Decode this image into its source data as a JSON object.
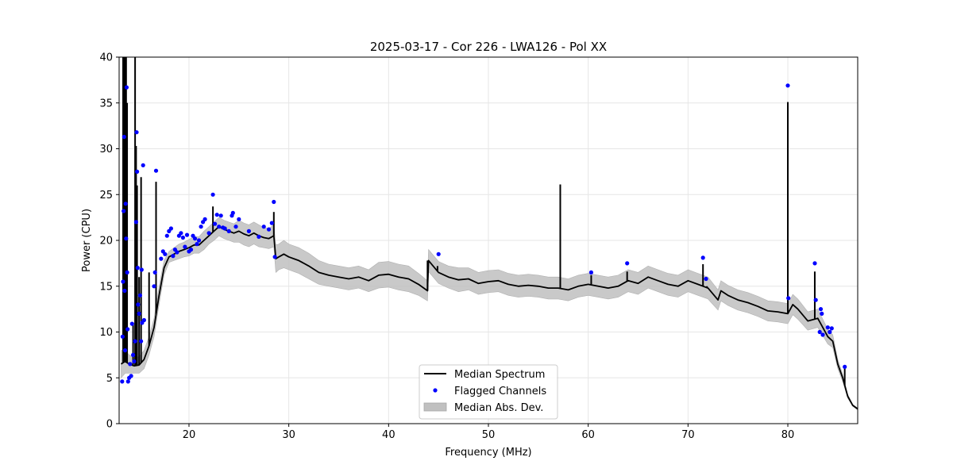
{
  "chart_data": {
    "type": "line",
    "title": "2025-03-17 - Cor 226 - LWA126 - Pol XX",
    "xlabel": "Frequency (MHz)",
    "ylabel": "Power (CPU)",
    "xlim": [
      13,
      87
    ],
    "ylim": [
      0,
      40
    ],
    "xticks": [
      20,
      30,
      40,
      50,
      60,
      70,
      80
    ],
    "yticks": [
      0,
      5,
      10,
      15,
      20,
      25,
      30,
      35,
      40
    ],
    "grid": true,
    "legend_position": "lower-center",
    "legend": [
      "Median Spectrum",
      "Flagged Channels",
      "Median Abs. Dev."
    ],
    "colors": {
      "median": "#000000",
      "flagged": "#0000ff",
      "mad": "#c0c0c0"
    },
    "series": [
      {
        "name": "Median Spectrum",
        "x": [
          13.2,
          13.6,
          14.0,
          14.5,
          15.0,
          15.5,
          16.0,
          16.5,
          17.0,
          17.5,
          18.0,
          18.5,
          19.0,
          19.5,
          20.0,
          20.5,
          21.0,
          21.5,
          22.0,
          22.5,
          23.0,
          23.5,
          24.0,
          24.5,
          25.0,
          25.5,
          26.0,
          26.5,
          27.0,
          27.5,
          28.0,
          28.5,
          28.7,
          29.0,
          29.5,
          30.0,
          30.5,
          31.0,
          32.0,
          33.0,
          34.0,
          35.0,
          36.0,
          37.0,
          38.0,
          39.0,
          40.0,
          41.0,
          42.0,
          43.0,
          43.9,
          44.0,
          45.0,
          46.0,
          47.0,
          48.0,
          49.0,
          50.0,
          51.0,
          52.0,
          53.0,
          54.0,
          55.0,
          56.0,
          57.0,
          58.0,
          59.0,
          60.0,
          61.0,
          62.0,
          63.0,
          64.0,
          65.0,
          66.0,
          67.0,
          68.0,
          69.0,
          70.0,
          71.0,
          72.0,
          73.0,
          73.3,
          74.0,
          75.0,
          76.0,
          77.0,
          78.0,
          79.0,
          80.0,
          80.5,
          81.0,
          82.0,
          83.0,
          83.5,
          84.0,
          84.5,
          85.0,
          85.5,
          86.0,
          86.5,
          87.0
        ],
        "y": [
          6.5,
          6.8,
          6.5,
          6.3,
          6.4,
          7.0,
          8.5,
          10.5,
          14.0,
          17.0,
          18.2,
          18.5,
          18.8,
          19.0,
          19.2,
          19.5,
          19.5,
          20.0,
          20.5,
          21.0,
          21.5,
          21.2,
          21.0,
          20.8,
          21.0,
          20.7,
          20.5,
          20.8,
          20.5,
          20.3,
          20.2,
          20.5,
          18.0,
          18.2,
          18.5,
          18.2,
          18.0,
          17.8,
          17.2,
          16.5,
          16.2,
          16.0,
          15.8,
          16.0,
          15.6,
          16.2,
          16.3,
          16.0,
          15.8,
          15.2,
          14.5,
          17.8,
          16.5,
          16.0,
          15.7,
          15.8,
          15.3,
          15.5,
          15.6,
          15.2,
          15.0,
          15.1,
          15.0,
          14.8,
          14.8,
          14.6,
          15.0,
          15.2,
          15.0,
          14.8,
          15.0,
          15.6,
          15.3,
          16.0,
          15.6,
          15.2,
          15.0,
          15.6,
          15.2,
          14.8,
          13.5,
          14.5,
          14.0,
          13.5,
          13.2,
          12.8,
          12.3,
          12.2,
          12.0,
          13.0,
          12.5,
          11.2,
          11.5,
          10.5,
          9.5,
          9.0,
          6.5,
          5.0,
          3.0,
          2.0,
          1.6
        ]
      },
      {
        "name": "Median Abs. Dev.",
        "x": [
          13.2,
          13.6,
          14.0,
          14.5,
          15.0,
          15.5,
          16.0,
          16.5,
          17.0,
          17.5,
          18.0,
          18.5,
          19.0,
          19.5,
          20.0,
          20.5,
          21.0,
          21.5,
          22.0,
          22.5,
          23.0,
          23.5,
          24.0,
          24.5,
          25.0,
          25.5,
          26.0,
          26.5,
          27.0,
          27.5,
          28.0,
          28.5,
          28.7,
          29.0,
          29.5,
          30.0,
          30.5,
          31.0,
          32.0,
          33.0,
          34.0,
          35.0,
          36.0,
          37.0,
          38.0,
          39.0,
          40.0,
          41.0,
          42.0,
          43.0,
          43.9,
          44.0,
          45.0,
          46.0,
          47.0,
          48.0,
          49.0,
          50.0,
          51.0,
          52.0,
          53.0,
          54.0,
          55.0,
          56.0,
          57.0,
          58.0,
          59.0,
          60.0,
          61.0,
          62.0,
          63.0,
          64.0,
          65.0,
          66.0,
          67.0,
          68.0,
          69.0,
          70.0,
          71.0,
          72.0,
          73.0,
          73.3,
          74.0,
          75.0,
          76.0,
          77.0,
          78.0,
          79.0,
          80.0,
          80.5,
          81.0,
          82.0,
          83.0,
          83.5,
          84.0,
          84.5,
          85.0,
          85.5,
          86.0,
          86.5,
          87.0
        ],
        "low": [
          5.0,
          5.5,
          5.5,
          5.5,
          5.5,
          6.0,
          7.5,
          9.5,
          13.0,
          16.2,
          17.6,
          17.8,
          18.0,
          18.2,
          18.3,
          18.6,
          18.6,
          19.0,
          19.6,
          20.0,
          20.5,
          20.2,
          20.0,
          19.8,
          19.8,
          19.5,
          19.3,
          19.6,
          19.3,
          19.2,
          19.1,
          19.3,
          16.5,
          16.8,
          17.0,
          16.8,
          16.6,
          16.4,
          15.8,
          15.2,
          15.0,
          14.8,
          14.6,
          14.8,
          14.4,
          14.8,
          14.9,
          14.6,
          14.4,
          14.0,
          13.4,
          16.6,
          15.3,
          14.8,
          14.4,
          14.6,
          14.1,
          14.3,
          14.4,
          14.0,
          13.8,
          13.9,
          13.8,
          13.6,
          13.6,
          13.4,
          13.8,
          14.0,
          13.8,
          13.6,
          13.8,
          14.4,
          14.1,
          14.8,
          14.4,
          14.0,
          13.8,
          14.4,
          14.0,
          13.6,
          12.4,
          13.4,
          12.9,
          12.4,
          12.1,
          11.7,
          11.2,
          11.1,
          10.9,
          11.9,
          11.4,
          10.2,
          10.5,
          9.6,
          8.7,
          8.3,
          6.0,
          4.6,
          2.8,
          1.9,
          1.5
        ],
        "high": [
          8.0,
          8.0,
          7.5,
          7.2,
          7.3,
          8.0,
          9.5,
          11.5,
          15.0,
          17.8,
          18.8,
          19.2,
          19.6,
          19.8,
          20.1,
          20.4,
          20.4,
          21.0,
          21.5,
          22.0,
          22.5,
          22.2,
          22.0,
          21.8,
          22.2,
          21.9,
          21.7,
          22.0,
          21.7,
          21.4,
          21.3,
          21.7,
          19.5,
          19.6,
          20.0,
          19.6,
          19.4,
          19.2,
          18.6,
          17.8,
          17.4,
          17.2,
          17.0,
          17.2,
          16.8,
          17.6,
          17.7,
          17.4,
          17.2,
          16.4,
          15.6,
          19.0,
          17.7,
          17.2,
          17.0,
          17.0,
          16.5,
          16.7,
          16.8,
          16.4,
          16.2,
          16.3,
          16.2,
          16.0,
          16.0,
          15.8,
          16.2,
          16.4,
          16.2,
          16.0,
          16.2,
          16.8,
          16.5,
          17.2,
          16.8,
          16.4,
          16.2,
          16.8,
          16.4,
          16.0,
          14.6,
          15.6,
          15.1,
          14.6,
          14.3,
          13.9,
          13.4,
          13.3,
          13.1,
          14.1,
          13.6,
          12.2,
          12.5,
          11.4,
          10.3,
          9.7,
          7.0,
          5.4,
          3.2,
          2.1,
          1.7
        ]
      },
      {
        "name": "Flagged Channels",
        "points": [
          [
            13.3,
            4.6
          ],
          [
            13.35,
            9.5
          ],
          [
            13.4,
            15.5
          ],
          [
            13.45,
            23.2
          ],
          [
            13.5,
            31.3
          ],
          [
            13.55,
            14.5
          ],
          [
            13.6,
            8.0
          ],
          [
            13.65,
            24.0
          ],
          [
            13.7,
            20.2
          ],
          [
            13.75,
            36.7
          ],
          [
            13.8,
            16.5
          ],
          [
            13.85,
            10.3
          ],
          [
            13.9,
            4.6
          ],
          [
            14.0,
            5.0
          ],
          [
            14.1,
            6.5
          ],
          [
            14.2,
            5.2
          ],
          [
            14.3,
            10.9
          ],
          [
            14.4,
            7.5
          ],
          [
            14.5,
            6.8
          ],
          [
            14.6,
            9.0
          ],
          [
            14.7,
            22.0
          ],
          [
            14.75,
            31.8
          ],
          [
            14.8,
            27.5
          ],
          [
            14.85,
            17.0
          ],
          [
            14.9,
            13.0
          ],
          [
            15.0,
            12.0
          ],
          [
            15.1,
            14.0
          ],
          [
            15.2,
            9.0
          ],
          [
            15.25,
            16.8
          ],
          [
            15.3,
            11.0
          ],
          [
            15.4,
            28.2
          ],
          [
            15.5,
            11.3
          ],
          [
            16.5,
            15.0
          ],
          [
            16.6,
            16.5
          ],
          [
            16.7,
            27.6
          ],
          [
            17.2,
            18.0
          ],
          [
            17.4,
            18.8
          ],
          [
            17.6,
            18.5
          ],
          [
            17.8,
            20.5
          ],
          [
            18.0,
            21.0
          ],
          [
            18.2,
            21.3
          ],
          [
            18.4,
            18.3
          ],
          [
            18.6,
            19.0
          ],
          [
            18.8,
            18.7
          ],
          [
            19.0,
            20.5
          ],
          [
            19.2,
            20.8
          ],
          [
            19.4,
            20.3
          ],
          [
            19.6,
            19.3
          ],
          [
            19.8,
            20.6
          ],
          [
            20.0,
            18.8
          ],
          [
            20.2,
            19.0
          ],
          [
            20.4,
            20.5
          ],
          [
            20.6,
            20.2
          ],
          [
            20.8,
            19.6
          ],
          [
            21.0,
            20.0
          ],
          [
            21.2,
            21.5
          ],
          [
            21.4,
            22.0
          ],
          [
            21.6,
            22.3
          ],
          [
            22.0,
            20.8
          ],
          [
            22.4,
            25.0
          ],
          [
            22.6,
            21.8
          ],
          [
            22.8,
            22.8
          ],
          [
            23.0,
            21.5
          ],
          [
            23.2,
            22.7
          ],
          [
            23.4,
            21.4
          ],
          [
            23.6,
            21.3
          ],
          [
            24.0,
            21.0
          ],
          [
            24.3,
            22.7
          ],
          [
            24.4,
            23.0
          ],
          [
            24.7,
            21.5
          ],
          [
            25.0,
            22.3
          ],
          [
            26.0,
            21.0
          ],
          [
            27.0,
            20.4
          ],
          [
            27.5,
            21.5
          ],
          [
            28.0,
            21.2
          ],
          [
            28.3,
            21.9
          ],
          [
            28.5,
            24.2
          ],
          [
            28.6,
            18.2
          ],
          [
            45.0,
            18.5
          ],
          [
            60.3,
            16.5
          ],
          [
            63.9,
            17.5
          ],
          [
            71.5,
            18.1
          ],
          [
            71.8,
            15.8
          ],
          [
            80.0,
            36.9
          ],
          [
            80.05,
            13.7
          ],
          [
            82.7,
            17.5
          ],
          [
            82.8,
            13.5
          ],
          [
            83.2,
            10.0
          ],
          [
            83.3,
            12.5
          ],
          [
            83.4,
            12.0
          ],
          [
            83.5,
            9.7
          ],
          [
            84.0,
            10.5
          ],
          [
            84.2,
            10.0
          ],
          [
            84.4,
            10.4
          ],
          [
            85.7,
            6.2
          ]
        ]
      }
    ],
    "spikes": [
      [
        13.4,
        40
      ],
      [
        13.5,
        40
      ],
      [
        13.6,
        40
      ],
      [
        13.7,
        40
      ],
      [
        13.8,
        35
      ],
      [
        14.4,
        11
      ],
      [
        14.6,
        40
      ],
      [
        14.7,
        30.3
      ],
      [
        14.8,
        26
      ],
      [
        15.0,
        16
      ],
      [
        15.2,
        26.9
      ],
      [
        16.0,
        16.5
      ],
      [
        16.7,
        26.4
      ],
      [
        22.4,
        23.7
      ],
      [
        28.5,
        23.1
      ],
      [
        43.9,
        17.8
      ],
      [
        44.9,
        17.2
      ],
      [
        57.2,
        26.1
      ],
      [
        60.3,
        16.2
      ],
      [
        63.9,
        16.6
      ],
      [
        71.5,
        17.4
      ],
      [
        71.9,
        15.0
      ],
      [
        80.0,
        35.1
      ],
      [
        82.7,
        16.6
      ],
      [
        85.7,
        6.0
      ]
    ]
  }
}
